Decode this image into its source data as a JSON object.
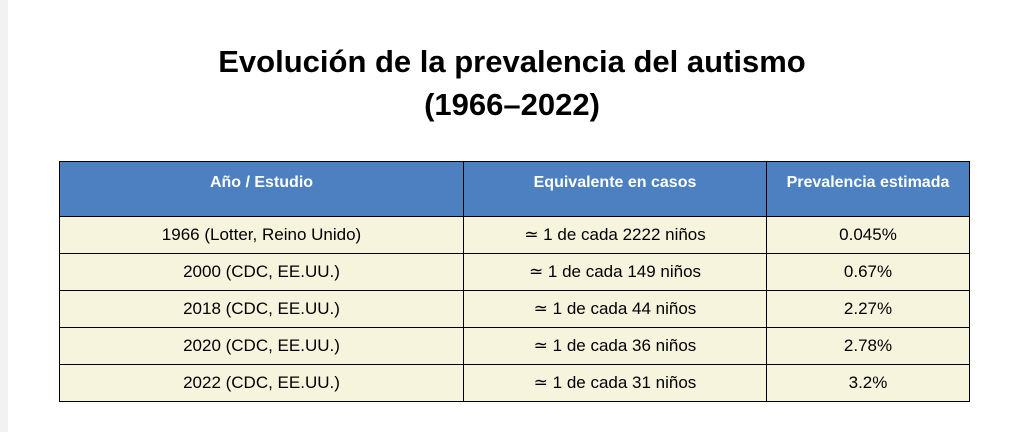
{
  "header": {
    "title": "Evolución de la prevalencia del autismo",
    "subtitle": "(1966–2022)"
  },
  "table": {
    "columns": [
      "Año / Estudio",
      "Equivalente en casos",
      "Prevalencia estimada"
    ],
    "rows": [
      [
        "1966 (Lotter, Reino Unido)",
        "≃ 1 de cada 2222 niños",
        "0.045%"
      ],
      [
        "2000 (CDC, EE.UU.)",
        "≃ 1 de cada 149 niños",
        "0.67%"
      ],
      [
        "2018 (CDC, EE.UU.)",
        "≃ 1 de cada 44 niños",
        "2.27%"
      ],
      [
        "2020 (CDC, EE.UU.)",
        "≃ 1 de cada 36 niños",
        "2.78%"
      ],
      [
        "2022 (CDC, EE.UU.)",
        "≃ 1 de cada 31 niños",
        "3.2%"
      ]
    ]
  }
}
